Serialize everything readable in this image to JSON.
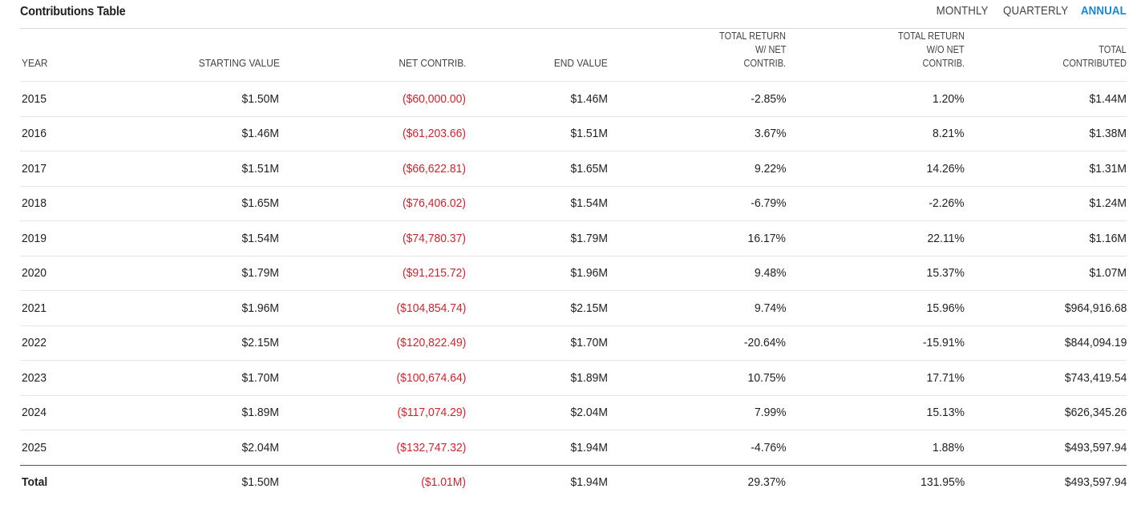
{
  "title": "Contributions Table",
  "period_toggle": {
    "options": [
      "MONTHLY",
      "QUARTERLY",
      "ANNUAL"
    ],
    "selected": "ANNUAL"
  },
  "colors": {
    "accent": "#1a86d6",
    "negative": "#d0242f",
    "text": "#222222"
  },
  "table": {
    "headers": {
      "year": "YEAR",
      "starting_value": "STARTING VALUE",
      "net_contrib": "NET CONTRIB.",
      "end_value": "END VALUE",
      "total_return_with_net": [
        "TOTAL RETURN",
        "W/ NET",
        "CONTRIB."
      ],
      "total_return_without_net": [
        "TOTAL RETURN",
        "W/O NET",
        "CONTRIB."
      ],
      "total_contributed": [
        "TOTAL",
        "CONTRIBUTED"
      ]
    },
    "rows": [
      {
        "year": "2015",
        "starting_value": "$1.50M",
        "net_contrib": "($60,000.00)",
        "end_value": "$1.46M",
        "tr_with": "-2.85%",
        "tr_without": "1.20%",
        "total_contributed": "$1.44M"
      },
      {
        "year": "2016",
        "starting_value": "$1.46M",
        "net_contrib": "($61,203.66)",
        "end_value": "$1.51M",
        "tr_with": "3.67%",
        "tr_without": "8.21%",
        "total_contributed": "$1.38M"
      },
      {
        "year": "2017",
        "starting_value": "$1.51M",
        "net_contrib": "($66,622.81)",
        "end_value": "$1.65M",
        "tr_with": "9.22%",
        "tr_without": "14.26%",
        "total_contributed": "$1.31M"
      },
      {
        "year": "2018",
        "starting_value": "$1.65M",
        "net_contrib": "($76,406.02)",
        "end_value": "$1.54M",
        "tr_with": "-6.79%",
        "tr_without": "-2.26%",
        "total_contributed": "$1.24M"
      },
      {
        "year": "2019",
        "starting_value": "$1.54M",
        "net_contrib": "($74,780.37)",
        "end_value": "$1.79M",
        "tr_with": "16.17%",
        "tr_without": "22.11%",
        "total_contributed": "$1.16M"
      },
      {
        "year": "2020",
        "starting_value": "$1.79M",
        "net_contrib": "($91,215.72)",
        "end_value": "$1.96M",
        "tr_with": "9.48%",
        "tr_without": "15.37%",
        "total_contributed": "$1.07M"
      },
      {
        "year": "2021",
        "starting_value": "$1.96M",
        "net_contrib": "($104,854.74)",
        "end_value": "$2.15M",
        "tr_with": "9.74%",
        "tr_without": "15.96%",
        "total_contributed": "$964,916.68"
      },
      {
        "year": "2022",
        "starting_value": "$2.15M",
        "net_contrib": "($120,822.49)",
        "end_value": "$1.70M",
        "tr_with": "-20.64%",
        "tr_without": "-15.91%",
        "total_contributed": "$844,094.19"
      },
      {
        "year": "2023",
        "starting_value": "$1.70M",
        "net_contrib": "($100,674.64)",
        "end_value": "$1.89M",
        "tr_with": "10.75%",
        "tr_without": "17.71%",
        "total_contributed": "$743,419.54"
      },
      {
        "year": "2024",
        "starting_value": "$1.89M",
        "net_contrib": "($117,074.29)",
        "end_value": "$2.04M",
        "tr_with": "7.99%",
        "tr_without": "15.13%",
        "total_contributed": "$626,345.26"
      },
      {
        "year": "2025",
        "starting_value": "$2.04M",
        "net_contrib": "($132,747.32)",
        "end_value": "$1.94M",
        "tr_with": "-4.76%",
        "tr_without": "1.88%",
        "total_contributed": "$493,597.94"
      }
    ],
    "total": {
      "year": "Total",
      "starting_value": "$1.50M",
      "net_contrib": "($1.01M)",
      "end_value": "$1.94M",
      "tr_with": "29.37%",
      "tr_without": "131.95%",
      "total_contributed": "$493,597.94"
    }
  }
}
